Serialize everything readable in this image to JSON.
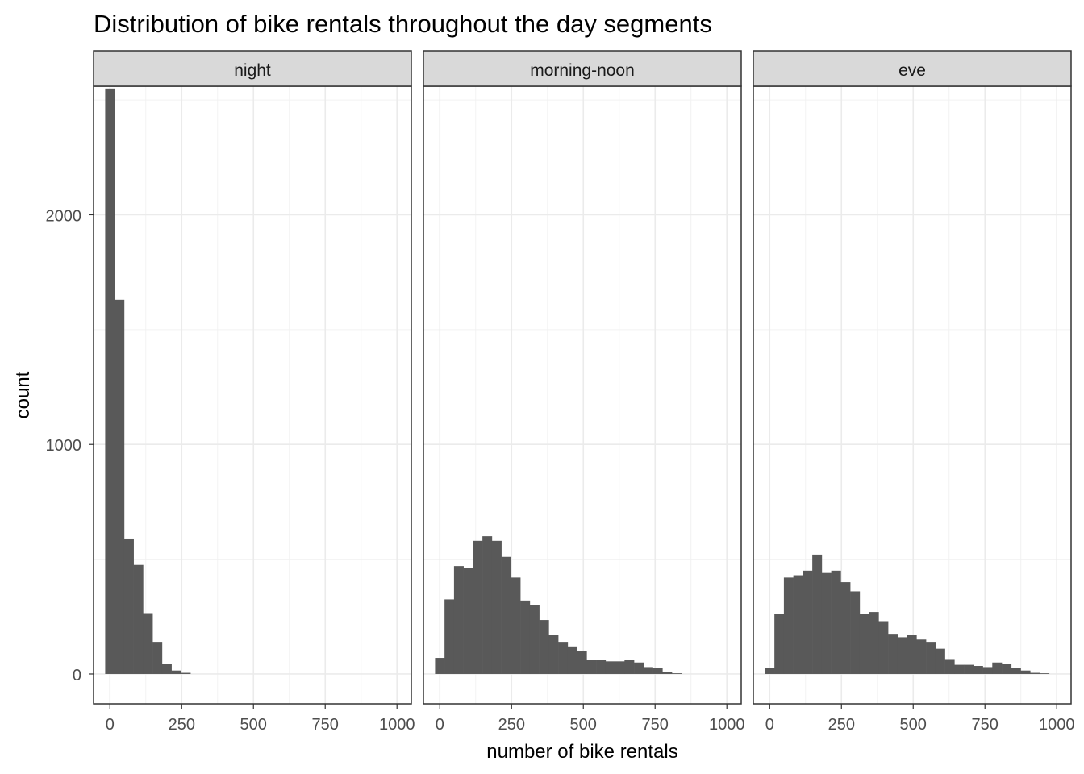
{
  "chart_data": {
    "type": "bar",
    "title": "Distribution of bike rentals throughout the day segments",
    "xlabel": "number of bike rentals",
    "ylabel": "count",
    "ylim": [
      -130,
      2560
    ],
    "xlim": [
      -57,
      1050
    ],
    "x_ticks": [
      0,
      250,
      500,
      750,
      1000
    ],
    "y_ticks": [
      0,
      1000,
      2000
    ],
    "bin_width": 33,
    "bar_color": "#595959",
    "grid": true,
    "panels": [
      {
        "name": "night",
        "bin_centers": [
          0,
          33,
          66,
          99,
          132,
          165,
          198,
          231,
          264
        ],
        "counts": [
          2550,
          1630,
          590,
          475,
          265,
          140,
          45,
          15,
          5
        ]
      },
      {
        "name": "morning-noon",
        "bin_centers": [
          0,
          33,
          66,
          99,
          132,
          165,
          198,
          231,
          264,
          297,
          330,
          363,
          396,
          429,
          462,
          495,
          528,
          561,
          594,
          627,
          660,
          693,
          726,
          759,
          792,
          825
        ],
        "counts": [
          70,
          325,
          470,
          460,
          580,
          600,
          580,
          510,
          420,
          320,
          300,
          235,
          170,
          140,
          120,
          100,
          60,
          60,
          55,
          55,
          60,
          50,
          30,
          25,
          10,
          3
        ]
      },
      {
        "name": "eve",
        "bin_centers": [
          0,
          33,
          66,
          99,
          132,
          165,
          198,
          231,
          264,
          297,
          330,
          363,
          396,
          429,
          462,
          495,
          528,
          561,
          594,
          627,
          660,
          693,
          726,
          759,
          792,
          825,
          858,
          891,
          924,
          957
        ],
        "counts": [
          25,
          260,
          420,
          430,
          450,
          520,
          440,
          450,
          400,
          360,
          260,
          270,
          230,
          175,
          160,
          170,
          150,
          140,
          110,
          65,
          40,
          40,
          35,
          30,
          50,
          45,
          25,
          15,
          5,
          3
        ]
      }
    ]
  }
}
